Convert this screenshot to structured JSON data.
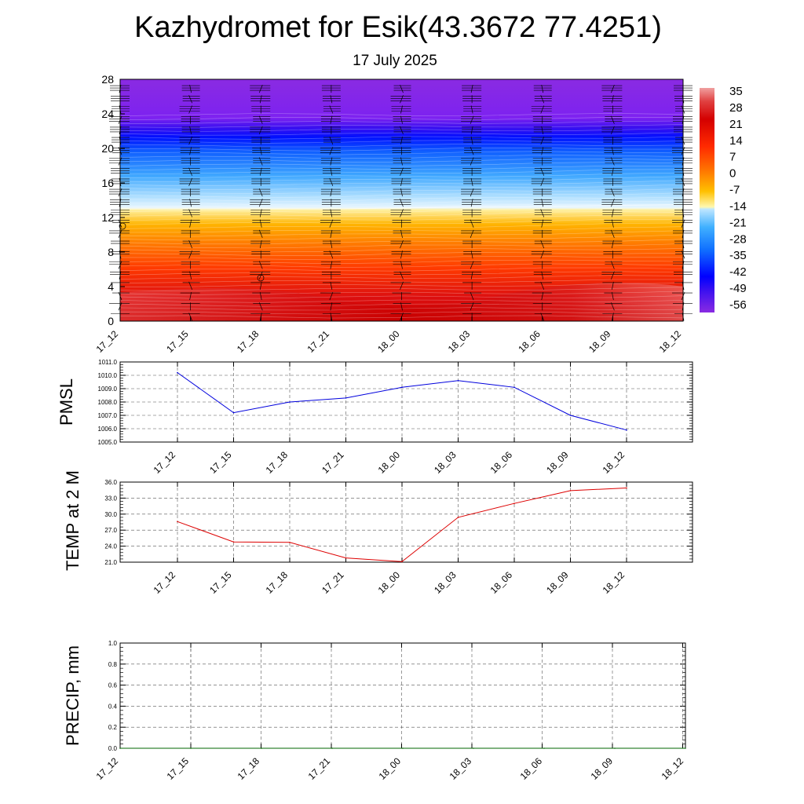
{
  "title": "Kazhydromet for Esik(43.3672 77.4251)",
  "subtitle": "17 July 2025",
  "colors": {
    "pmsl_line": "#0000dd",
    "temp_line": "#dd0000",
    "precip_line": "#006400",
    "grid": "#555555"
  },
  "chart_data": [
    {
      "type": "heatmap",
      "name": "upper-air",
      "title": "",
      "xlabel": "",
      "ylabel": "",
      "x_ticks": [
        "17_12",
        "17_15",
        "17_18",
        "17_21",
        "18_00",
        "18_03",
        "18_06",
        "18_09",
        "18_12"
      ],
      "y_ticks": [
        0,
        4,
        8,
        12,
        16,
        20,
        24,
        28
      ],
      "ylim": [
        0,
        28
      ],
      "colorbar_labels": [
        "35",
        "28",
        "21",
        "14",
        "7",
        "0",
        "-7",
        "-14",
        "-21",
        "-28",
        "-35",
        "-42",
        "-49",
        "-56"
      ],
      "colorbar_range": [
        -60,
        38
      ],
      "freezing_level": [
        13.0,
        13.0,
        13.0,
        13.0,
        13.1,
        13.2,
        13.3,
        13.4,
        13.5
      ],
      "wind_barbs": true
    },
    {
      "type": "line",
      "name": "pmsl",
      "title": "",
      "ylabel": "PMSL",
      "categories": [
        "17_12",
        "17_15",
        "17_18",
        "17_21",
        "18_00",
        "18_03",
        "18_06",
        "18_09",
        "18_12"
      ],
      "values": [
        1010.2,
        1007.2,
        1008.0,
        1008.3,
        1009.1,
        1009.6,
        1009.1,
        1007.0,
        1005.9
      ],
      "y_ticks": [
        "1005.0",
        "1006.0",
        "1007.0",
        "1008.0",
        "1009.0",
        "1010.0",
        "1011.0"
      ],
      "ylim": [
        1005.0,
        1011.0
      ],
      "grid": true
    },
    {
      "type": "line",
      "name": "temp",
      "title": "",
      "ylabel": "TEMP at 2 M",
      "categories": [
        "17_12",
        "17_15",
        "17_18",
        "17_21",
        "18_00",
        "18_03",
        "18_06",
        "18_09",
        "18_12"
      ],
      "values": [
        28.6,
        24.8,
        24.7,
        21.8,
        21.1,
        29.4,
        32.0,
        34.4,
        34.9
      ],
      "y_ticks": [
        "21.0",
        "24.0",
        "27.0",
        "30.0",
        "33.0",
        "36.0"
      ],
      "ylim": [
        21.0,
        36.0
      ],
      "grid": true
    },
    {
      "type": "line",
      "name": "precip",
      "title": "",
      "ylabel": "PRECIP, mm",
      "categories": [
        "17_12",
        "17_15",
        "17_18",
        "17_21",
        "18_00",
        "18_03",
        "18_06",
        "18_09",
        "18_12"
      ],
      "values": [
        0,
        0,
        0,
        0,
        0,
        0,
        0,
        0,
        0
      ],
      "y_ticks": [
        "0.0",
        "0.2",
        "0.4",
        "0.6",
        "0.8",
        "1.0"
      ],
      "ylim": [
        0,
        1.0
      ],
      "grid": true
    }
  ]
}
